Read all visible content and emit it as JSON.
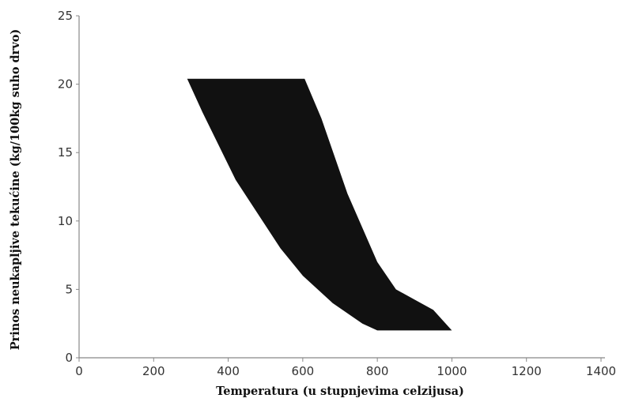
{
  "chart_data": {
    "type": "area",
    "title": "",
    "xlabel": "Temperatura  (u stupnjevima celzijusa)",
    "ylabel": "Prinos neukapljive tekućine (kg/100kg suho drvo)",
    "xlim": [
      0,
      1400
    ],
    "ylim": [
      0,
      25
    ],
    "x_ticks": [
      "0",
      "200",
      "400",
      "600",
      "800",
      "1000",
      "1200",
      "1400"
    ],
    "y_ticks": [
      "0",
      "5",
      "10",
      "15",
      "20",
      "25"
    ],
    "grid": false,
    "fill_color": "#111111",
    "region": {
      "upper_boundary": [
        {
          "x": 290,
          "y": 20.4
        },
        {
          "x": 605,
          "y": 20.4
        },
        {
          "x": 650,
          "y": 17.5
        },
        {
          "x": 720,
          "y": 12.0
        },
        {
          "x": 800,
          "y": 7.0
        },
        {
          "x": 850,
          "y": 5.0
        },
        {
          "x": 950,
          "y": 3.5
        },
        {
          "x": 1000,
          "y": 2.0
        }
      ],
      "lower_boundary": [
        {
          "x": 290,
          "y": 20.4
        },
        {
          "x": 330,
          "y": 18.0
        },
        {
          "x": 420,
          "y": 13.0
        },
        {
          "x": 540,
          "y": 8.0
        },
        {
          "x": 600,
          "y": 6.0
        },
        {
          "x": 680,
          "y": 4.0
        },
        {
          "x": 760,
          "y": 2.5
        },
        {
          "x": 800,
          "y": 2.0
        }
      ]
    }
  }
}
